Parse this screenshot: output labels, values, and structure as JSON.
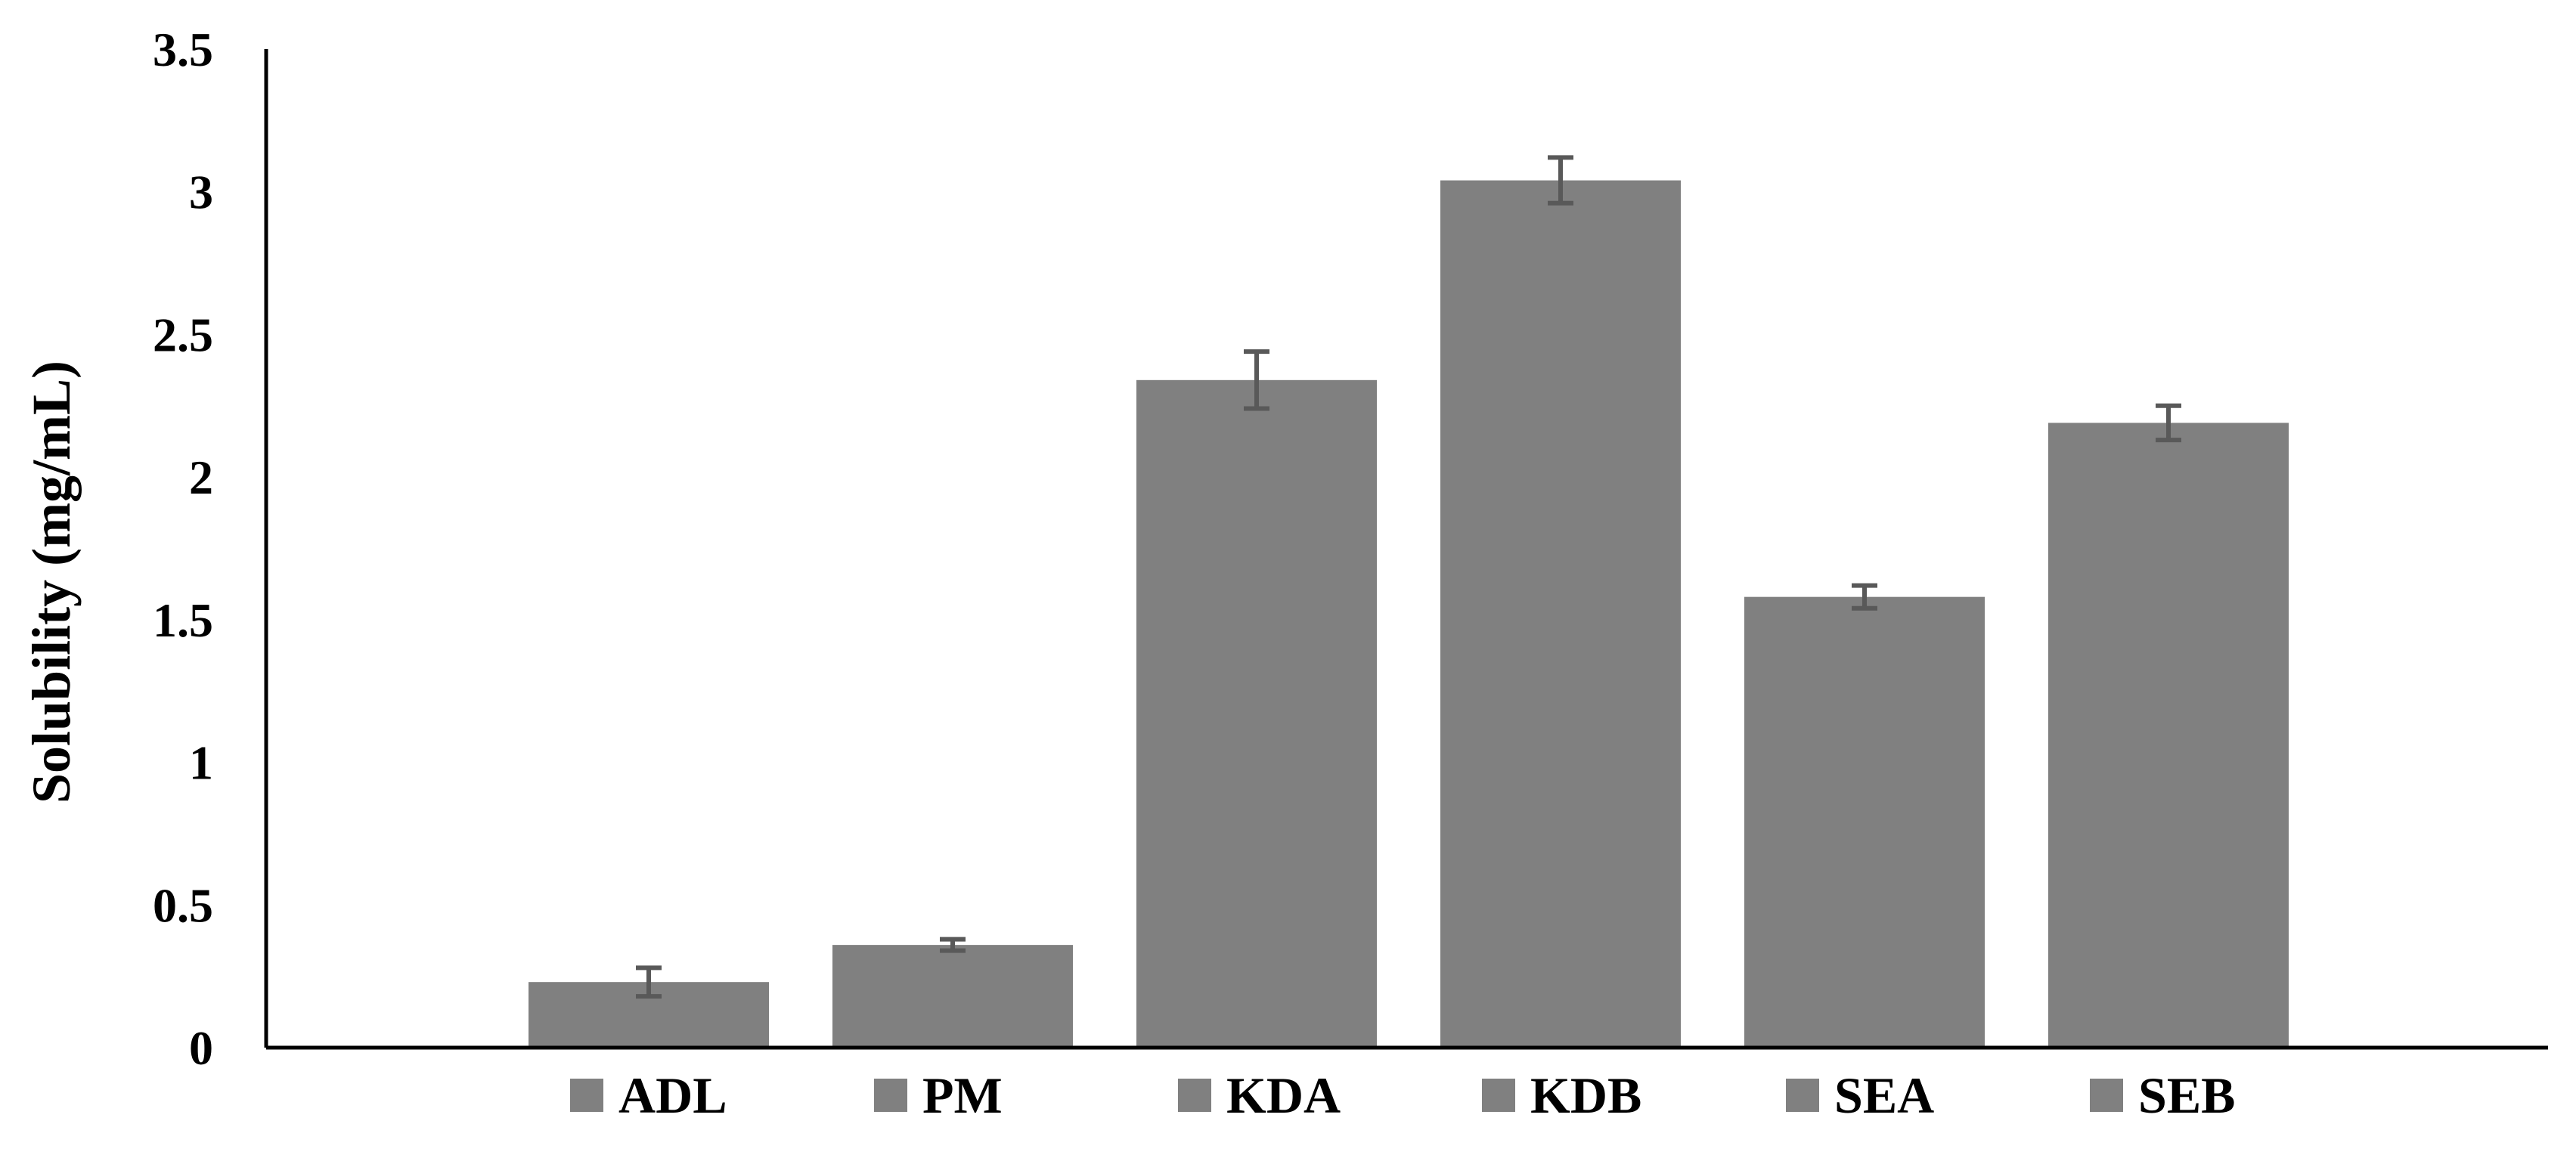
{
  "chart_data": {
    "type": "bar",
    "categories": [
      "ADL",
      "PM",
      "KDA",
      "KDB",
      "SEA",
      "SEB"
    ],
    "values": [
      0.23,
      0.36,
      2.34,
      3.04,
      1.58,
      2.19
    ],
    "errors": [
      0.05,
      0.02,
      0.1,
      0.08,
      0.04,
      0.06
    ],
    "xlabel": "",
    "ylabel": "Solubility (mg/mL)",
    "ylim": [
      0,
      3.5
    ],
    "yticks": [
      "0",
      "0.5",
      "1",
      "1.5",
      "2",
      "2.5",
      "3",
      "3.5"
    ],
    "grid": false,
    "legend_position": "bottom",
    "bar_color": "#808080",
    "errorbar_color": "#595959",
    "axis_color": "#000000"
  }
}
